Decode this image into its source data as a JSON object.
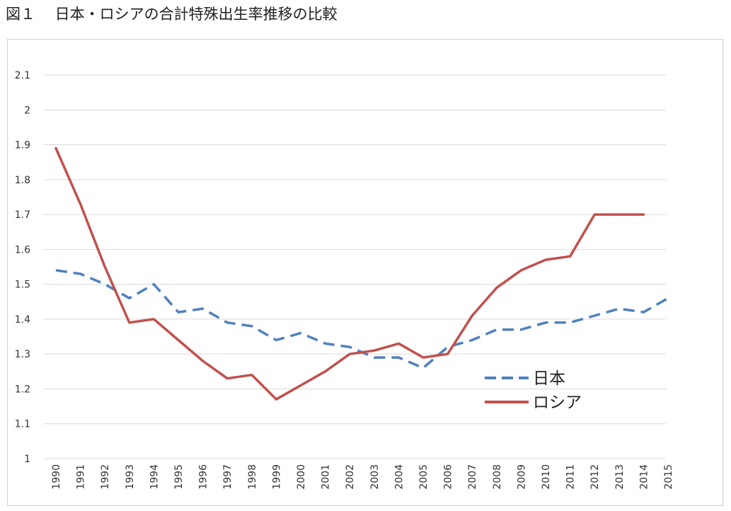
{
  "title": "図１　 日本・ロシアの合計特殊出生率推移の比較",
  "chart_data": {
    "type": "line",
    "title": "図１　 日本・ロシアの合計特殊出生率推移の比較",
    "xlabel": "",
    "ylabel": "",
    "categories": [
      "1990",
      "1991",
      "1992",
      "1993",
      "1994",
      "1995",
      "1996",
      "1997",
      "1998",
      "1999",
      "2000",
      "2001",
      "2002",
      "2003",
      "2004",
      "2005",
      "2006",
      "2007",
      "2008",
      "2009",
      "2010",
      "2011",
      "2012",
      "2013",
      "2014",
      "2015"
    ],
    "ylim": [
      1,
      2.1
    ],
    "yticks": [
      "1",
      "1.1",
      "1.2",
      "1.3",
      "1.4",
      "1.5",
      "1.6",
      "1.7",
      "1.8",
      "1.9",
      "2",
      "2.1"
    ],
    "grid": true,
    "legend_position": "right",
    "series": [
      {
        "name": "日本",
        "style": "dashed",
        "color": "#4f81bd",
        "values": [
          1.54,
          1.53,
          1.5,
          1.46,
          1.5,
          1.42,
          1.43,
          1.39,
          1.38,
          1.34,
          1.36,
          1.33,
          1.32,
          1.29,
          1.29,
          1.26,
          1.32,
          1.34,
          1.37,
          1.37,
          1.39,
          1.39,
          1.41,
          1.43,
          1.42,
          1.46
        ]
      },
      {
        "name": "ロシア",
        "style": "solid",
        "color": "#c0504d",
        "values": [
          1.89,
          1.73,
          1.55,
          1.39,
          1.4,
          1.34,
          1.28,
          1.23,
          1.24,
          1.17,
          1.21,
          1.25,
          1.3,
          1.31,
          1.33,
          1.29,
          1.3,
          1.41,
          1.49,
          1.54,
          1.57,
          1.58,
          1.7,
          1.7,
          1.7,
          null
        ]
      }
    ]
  }
}
